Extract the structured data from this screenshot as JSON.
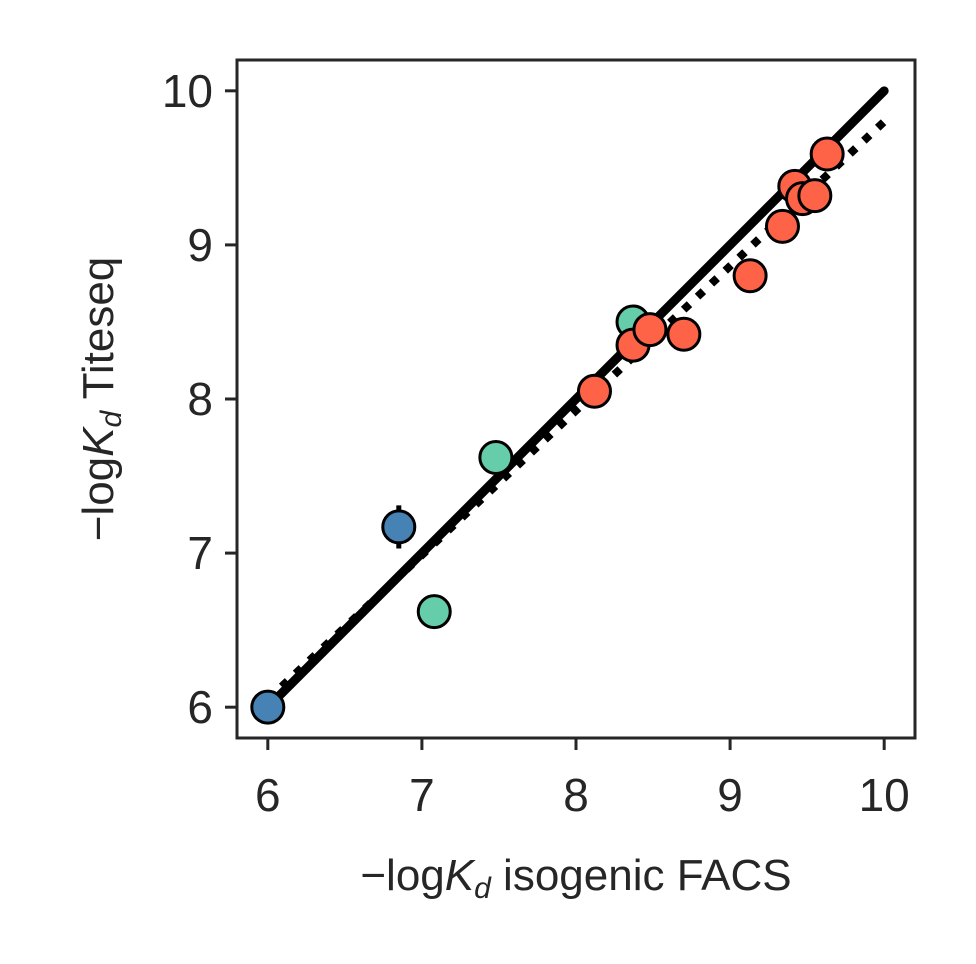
{
  "chart_data": {
    "type": "scatter",
    "title": "",
    "xlabel": {
      "prefix": "−log",
      "k": "K",
      "sub": "d",
      "suffix": " isogenic FACS"
    },
    "ylabel": {
      "prefix": "−log",
      "k": "K",
      "sub": "d",
      "suffix": " Titeseq"
    },
    "xlim": [
      5.8,
      10.2
    ],
    "ylim": [
      5.8,
      10.2
    ],
    "xticks": [
      6,
      7,
      8,
      9,
      10
    ],
    "yticks": [
      6,
      7,
      8,
      9,
      10
    ],
    "xtick_labels": [
      "6",
      "7",
      "8",
      "9",
      "10"
    ],
    "ytick_labels": [
      "6",
      "7",
      "8",
      "9",
      "10"
    ],
    "grid": false,
    "identity_line": {
      "x": [
        6,
        10
      ],
      "y": [
        6,
        10
      ],
      "color": "#000000",
      "style": "solid"
    },
    "fit_line": {
      "x": [
        6,
        10
      ],
      "y": [
        6.05,
        9.8
      ],
      "color": "#000000",
      "style": "dotted"
    },
    "series": [
      {
        "color": "#4682b4",
        "points": [
          {
            "x": 6.0,
            "y": 6.0,
            "yerr": 0.03
          },
          {
            "x": 6.85,
            "y": 7.17,
            "yerr": 0.14
          }
        ]
      },
      {
        "color": "#66cdaa",
        "points": [
          {
            "x": 7.08,
            "y": 6.62,
            "yerr": 0.0
          },
          {
            "x": 7.48,
            "y": 7.62,
            "yerr": 0.0
          },
          {
            "x": 8.37,
            "y": 8.5,
            "yerr": 0.0,
            "xerr": 0.1
          }
        ]
      },
      {
        "color": "#ff6347",
        "points": [
          {
            "x": 8.12,
            "y": 8.05
          },
          {
            "x": 8.37,
            "y": 8.35
          },
          {
            "x": 8.48,
            "y": 8.45
          },
          {
            "x": 8.7,
            "y": 8.42
          },
          {
            "x": 9.13,
            "y": 8.8
          },
          {
            "x": 9.34,
            "y": 9.12
          },
          {
            "x": 9.42,
            "y": 9.38
          },
          {
            "x": 9.47,
            "y": 9.3
          },
          {
            "x": 9.55,
            "y": 9.32
          },
          {
            "x": 9.63,
            "y": 9.59
          }
        ]
      }
    ]
  }
}
